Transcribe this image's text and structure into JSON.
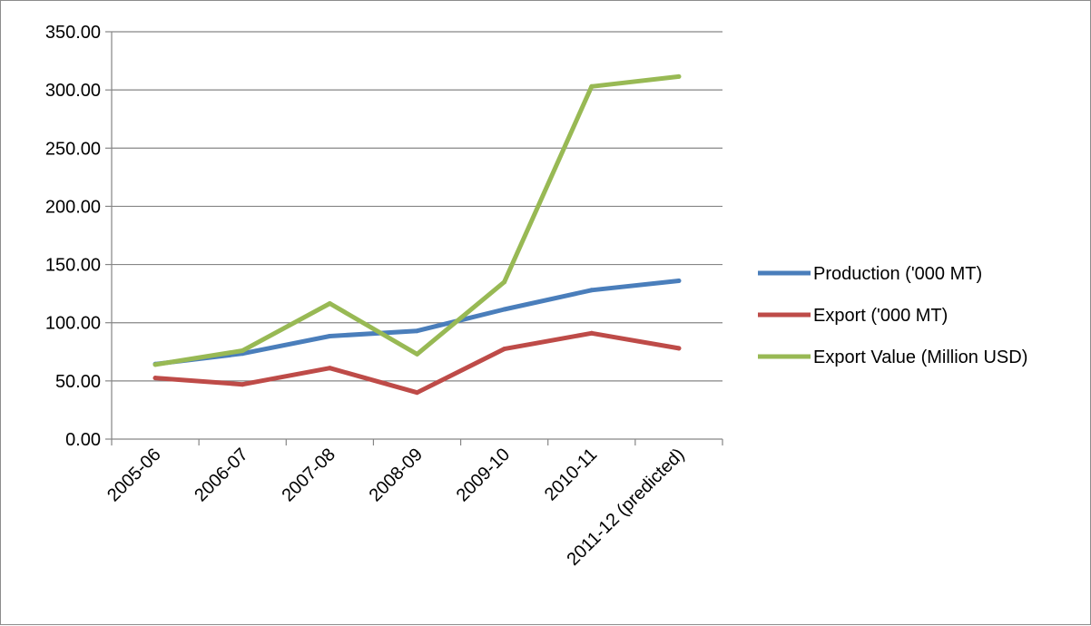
{
  "chart_data": {
    "type": "line",
    "title": "",
    "xlabel": "",
    "ylabel": "",
    "categories": [
      "2005-06",
      "2006-07",
      "2007-08",
      "2008-09",
      "2009-10",
      "2010-11",
      "2011-12 (predicted)"
    ],
    "ylim": [
      0,
      350
    ],
    "yticks": [
      "0.00",
      "50.00",
      "100.00",
      "150.00",
      "200.00",
      "250.00",
      "300.00",
      "350.00"
    ],
    "grid": true,
    "legend_position": "right",
    "series": [
      {
        "name": "Production ('000 MT)",
        "color": "#4a7ebb",
        "values": [
          64.5,
          73.5,
          88.5,
          93.0,
          111.5,
          128.0,
          136.0
        ]
      },
      {
        "name": "Export ('000 MT)",
        "color": "#be4b48",
        "values": [
          52.5,
          47.0,
          61.0,
          40.0,
          77.5,
          91.0,
          78.0
        ]
      },
      {
        "name": "Export Value (Million USD)",
        "color": "#98b954",
        "values": [
          64.0,
          76.0,
          116.5,
          73.0,
          135.0,
          303.0,
          311.5
        ]
      }
    ]
  }
}
